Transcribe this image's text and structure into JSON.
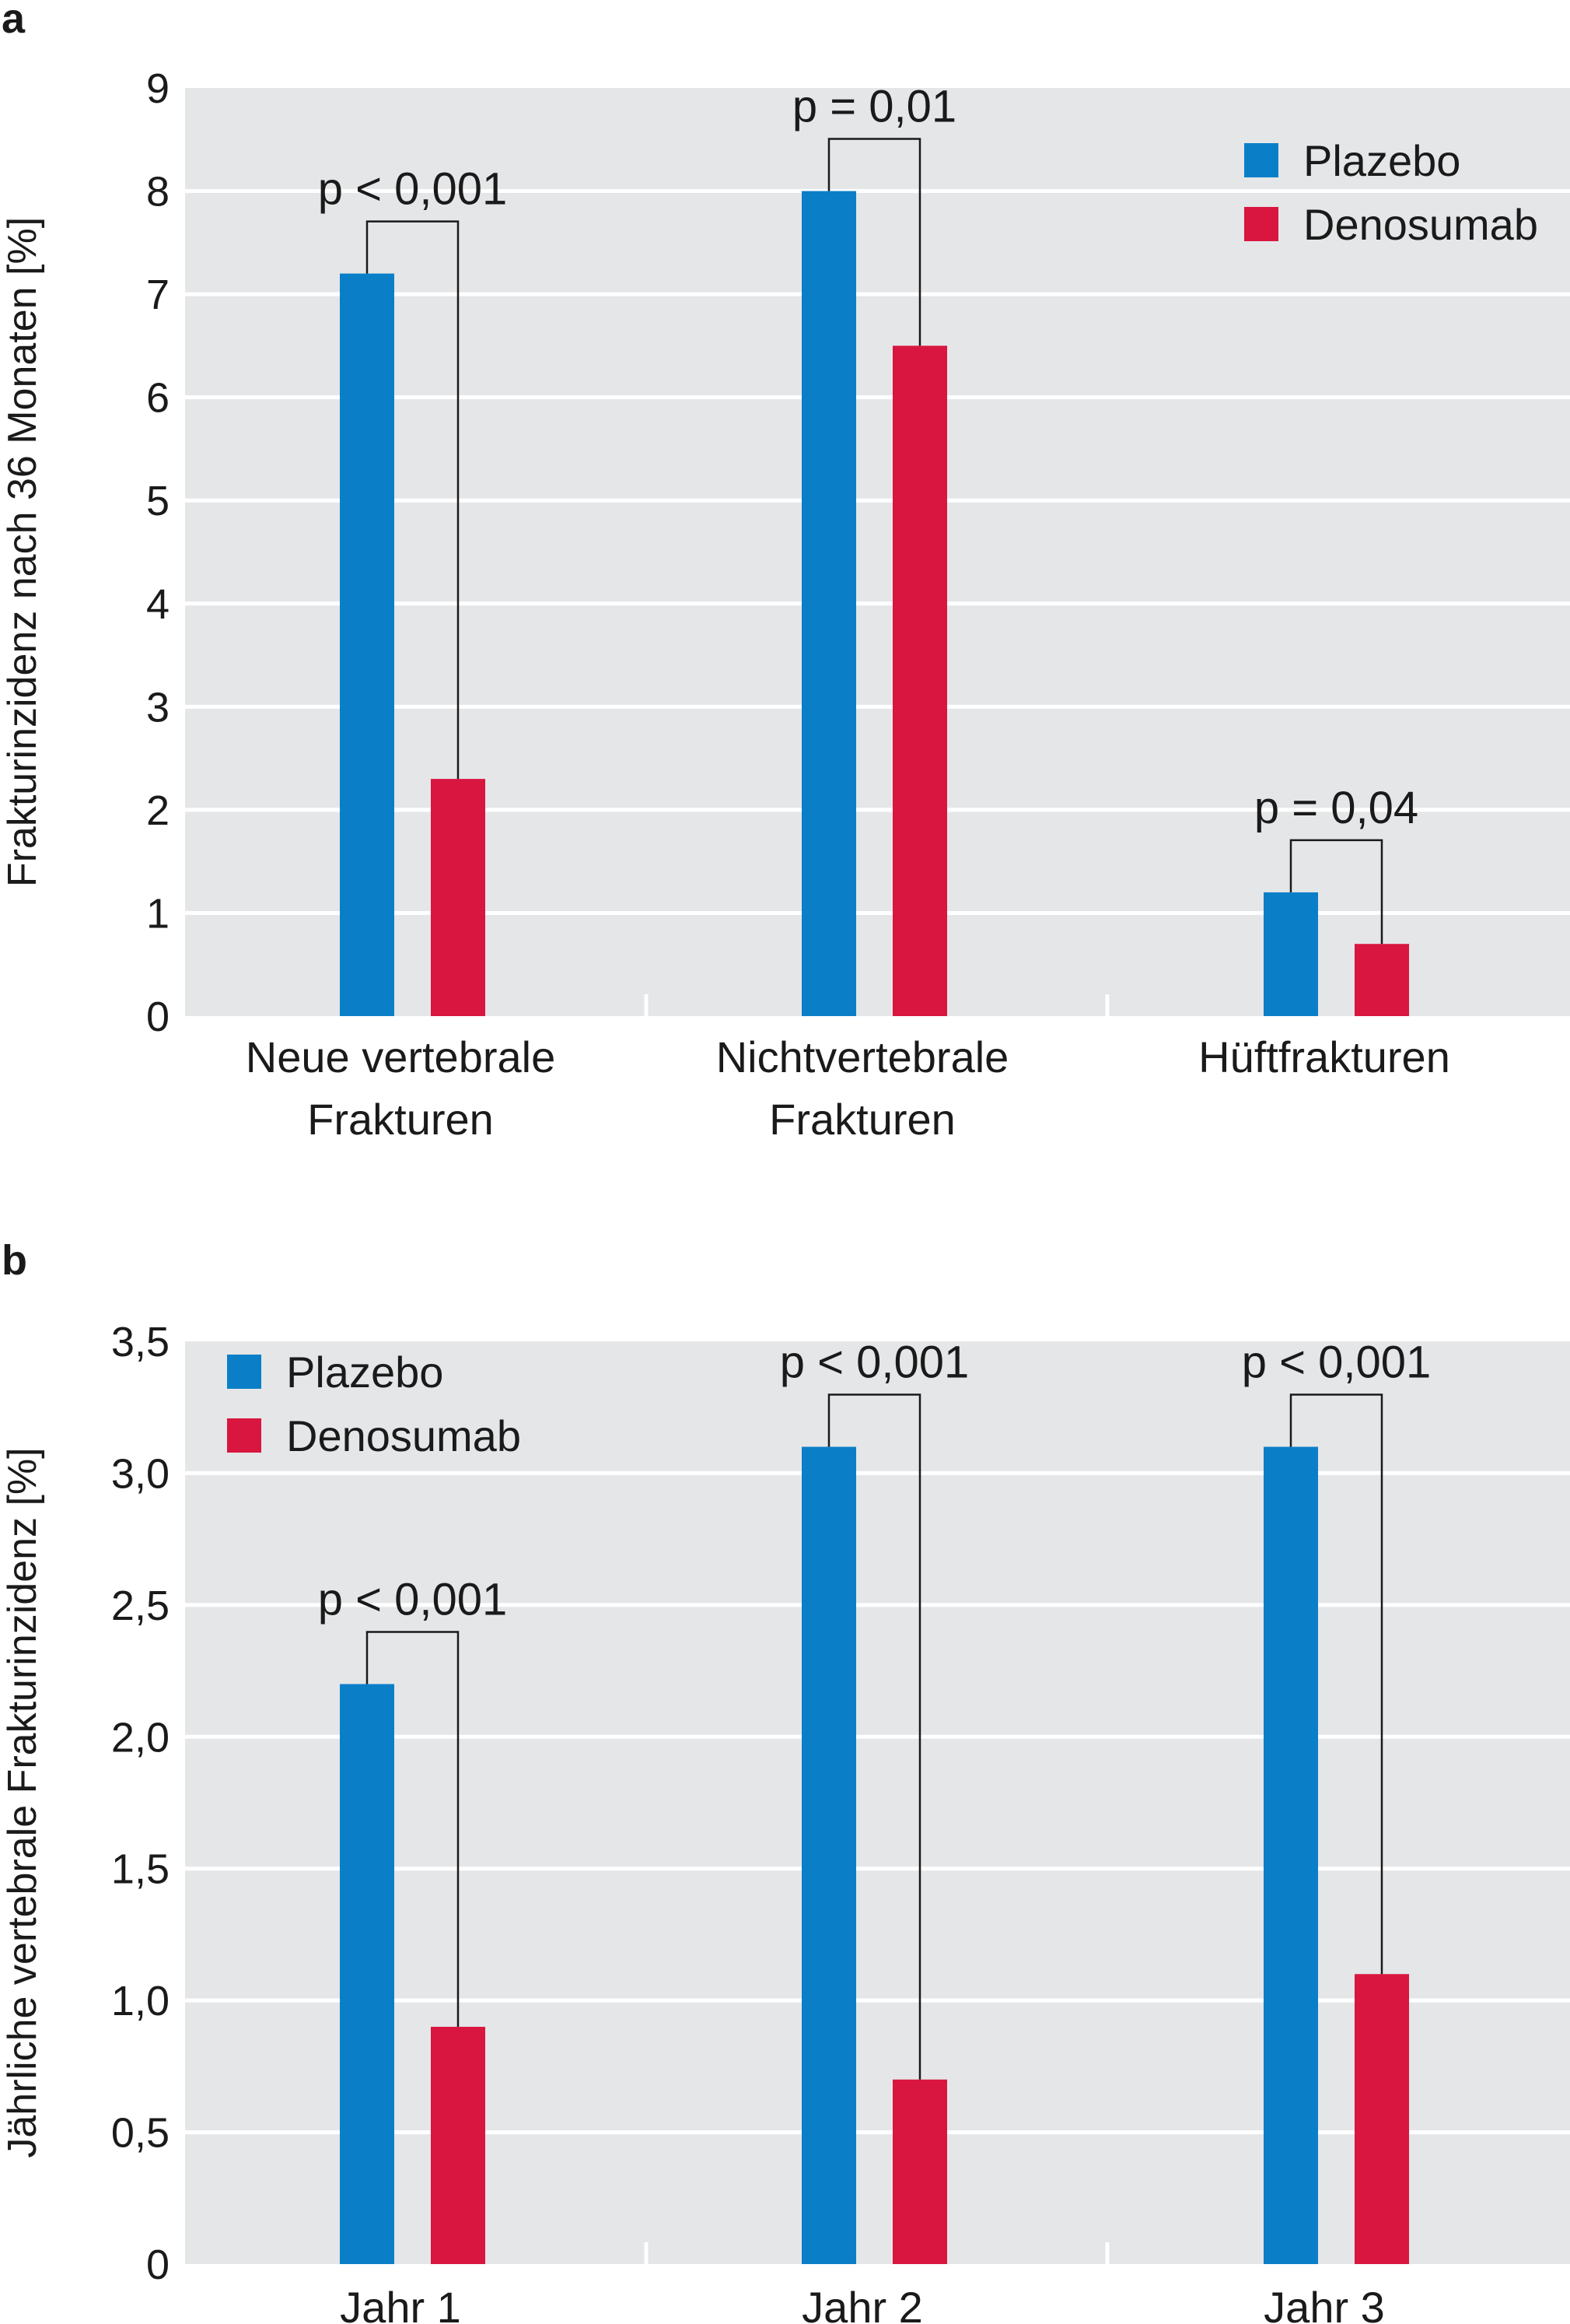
{
  "chart_data": [
    {
      "panel": "a",
      "type": "bar",
      "ylabel": "Frakturinzidenz nach 36 Monaten [%]",
      "ylim": [
        0,
        9
      ],
      "yticks": [
        "0",
        "1",
        "2",
        "3",
        "4",
        "5",
        "6",
        "7",
        "8",
        "9"
      ],
      "categories": [
        "Neue vertebrale\nFrakturen",
        "Nichtvertebrale\nFrakturen",
        "Hüftfrakturen"
      ],
      "series": [
        {
          "name": "Plazebo",
          "color": "#0a7fc8",
          "values": [
            7.2,
            8.0,
            1.2
          ]
        },
        {
          "name": "Denosumab",
          "color": "#d8163f",
          "values": [
            2.3,
            6.5,
            0.7
          ]
        }
      ],
      "annotations": [
        "p < 0,001",
        "p = 0,01",
        "p = 0,04"
      ],
      "legend_position": "top-right",
      "grid": true,
      "background": "#e5e6e8"
    },
    {
      "panel": "b",
      "type": "bar",
      "ylabel": "Jährliche vertebrale Frakturinzidenz [%]",
      "ylim": [
        0,
        3.5
      ],
      "yticks": [
        "0",
        "0,5",
        "1,0",
        "1,5",
        "2,0",
        "2,5",
        "3,0",
        "3,5"
      ],
      "categories": [
        "Jahr 1",
        "Jahr 2",
        "Jahr 3"
      ],
      "series": [
        {
          "name": "Plazebo",
          "color": "#0a7fc8",
          "values": [
            2.2,
            3.1,
            3.1
          ]
        },
        {
          "name": "Denosumab",
          "color": "#d8163f",
          "values": [
            0.9,
            0.7,
            1.1
          ]
        }
      ],
      "annotations": [
        "p < 0,001",
        "p < 0,001",
        "p < 0,001"
      ],
      "legend_position": "top-left",
      "grid": true,
      "background": "#e5e6e8"
    }
  ]
}
